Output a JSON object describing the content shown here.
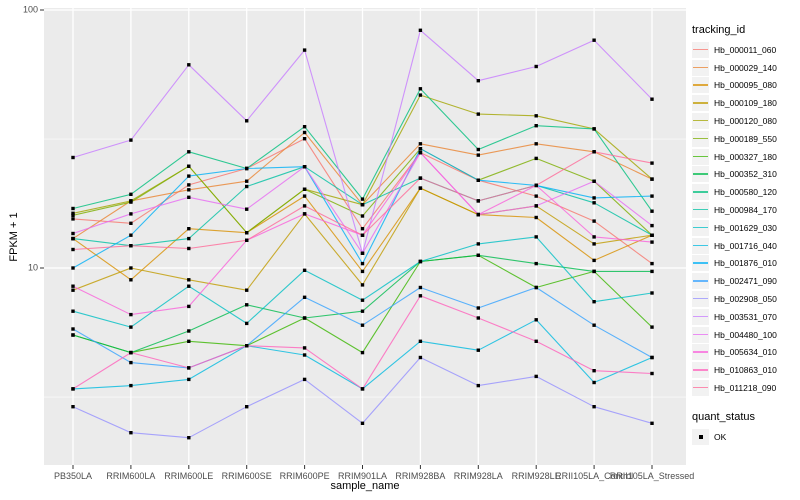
{
  "figure": {
    "background": "#FFFFFF",
    "panel_background": "#EBEBEB",
    "gridline_color": "#FFFFFF",
    "tick_text_color": "#4D4D4D",
    "marker_color": "#000000"
  },
  "chart_data": {
    "type": "line",
    "title": "",
    "xlabel": "sample_name",
    "ylabel": "FPKM + 1",
    "y_scale": "log10",
    "y_ticks": [
      100,
      10
    ],
    "y_minor_ticks": [
      31.6,
      3.16
    ],
    "ylim": [
      1.7,
      110
    ],
    "grid": true,
    "legend_position": "right",
    "legend_title": "tracking_id",
    "point_marker": "square",
    "point_color": "#000000",
    "categories": [
      "PB350LA",
      "RRIM600LA",
      "RRIM600LE",
      "RRIM600SE",
      "RRIM600PE",
      "RRIM901LA",
      "RRIM928BA",
      "RRIM928LA",
      "RRIM928LE",
      "RRII105LA_Control",
      "RRII105LA_Stressed"
    ],
    "series": [
      {
        "name": "Hb_000011_060",
        "color": "#F8766D",
        "values": [
          15.5,
          14.9,
          21.0,
          24.3,
          31.7,
          14.2,
          28.0,
          21.9,
          19.0,
          15.2,
          10.4
        ]
      },
      {
        "name": "Hb_000029_140",
        "color": "#EA8331",
        "values": [
          13.0,
          18.2,
          20.1,
          21.7,
          33.5,
          17.6,
          30.3,
          27.4,
          30.3,
          28.2,
          22.1
        ]
      },
      {
        "name": "Hb_000095_080",
        "color": "#D89000",
        "values": [
          13.0,
          9.0,
          14.2,
          13.7,
          19.0,
          9.7,
          20.4,
          16.1,
          15.7,
          10.7,
          13.4
        ]
      },
      {
        "name": "Hb_000109_180",
        "color": "#C09B00",
        "values": [
          8.2,
          10.0,
          9.0,
          8.2,
          16.2,
          8.6,
          20.4,
          16.1,
          17.4,
          12.4,
          13.4
        ]
      },
      {
        "name": "Hb_000120_080",
        "color": "#A3A500",
        "values": [
          16.3,
          18.2,
          24.8,
          13.7,
          20.2,
          17.6,
          46.8,
          39.5,
          38.9,
          34.6,
          22.1
        ]
      },
      {
        "name": "Hb_000189_550",
        "color": "#7CAE00",
        "values": [
          16.0,
          18.0,
          24.8,
          13.7,
          20.2,
          15.9,
          29.0,
          21.9,
          26.6,
          21.7,
          13.4
        ]
      },
      {
        "name": "Hb_000327_180",
        "color": "#39B600",
        "values": [
          5.5,
          4.7,
          5.2,
          5.0,
          6.4,
          4.7,
          10.6,
          11.2,
          8.4,
          9.7,
          5.9
        ]
      },
      {
        "name": "Hb_000352_310",
        "color": "#00BB4E",
        "values": [
          5.5,
          4.7,
          5.7,
          7.2,
          6.4,
          6.8,
          10.6,
          11.2,
          10.4,
          9.7,
          9.7
        ]
      },
      {
        "name": "Hb_000580_120",
        "color": "#00BF7D",
        "values": [
          17.0,
          19.3,
          28.2,
          24.3,
          35.3,
          18.5,
          49.5,
          28.8,
          35.6,
          34.6,
          16.6
        ]
      },
      {
        "name": "Hb_000984_170",
        "color": "#00C1A3",
        "values": [
          13.0,
          12.2,
          13.0,
          20.7,
          24.7,
          17.6,
          22.3,
          18.2,
          20.9,
          17.9,
          13.4
        ]
      },
      {
        "name": "Hb_001629_030",
        "color": "#00BFC4",
        "values": [
          6.8,
          5.9,
          8.5,
          6.1,
          9.8,
          7.5,
          10.6,
          12.4,
          13.2,
          7.4,
          8.0
        ]
      },
      {
        "name": "Hb_001716_040",
        "color": "#00BAE0",
        "values": [
          3.4,
          3.5,
          3.7,
          5.0,
          4.6,
          3.4,
          5.2,
          4.8,
          6.3,
          3.6,
          4.5
        ]
      },
      {
        "name": "Hb_001876_010",
        "color": "#00B0F6",
        "values": [
          10.0,
          13.4,
          22.7,
          24.3,
          24.7,
          10.4,
          29.0,
          21.9,
          20.9,
          18.7,
          19.0
        ]
      },
      {
        "name": "Hb_002471_090",
        "color": "#35A2FF",
        "values": [
          5.8,
          4.3,
          4.1,
          5.0,
          7.7,
          6.0,
          8.4,
          7.0,
          8.4,
          6.0,
          4.5
        ]
      },
      {
        "name": "Hb_002908_050",
        "color": "#9590FF",
        "values": [
          2.9,
          2.3,
          2.2,
          2.9,
          3.7,
          2.5,
          4.5,
          3.5,
          3.8,
          2.9,
          2.5
        ]
      },
      {
        "name": "Hb_003531_070",
        "color": "#C77CFF",
        "values": [
          26.8,
          31.3,
          61.3,
          37.2,
          69.9,
          11.4,
          83.4,
          53.2,
          60.4,
          76.4,
          45.1
        ]
      },
      {
        "name": "Hb_004480_100",
        "color": "#E76BF3",
        "values": [
          13.6,
          16.2,
          18.8,
          16.9,
          24.7,
          11.4,
          28.0,
          16.1,
          17.4,
          21.7,
          14.6
        ]
      },
      {
        "name": "Hb_005634_010",
        "color": "#FA62DB",
        "values": [
          8.5,
          6.6,
          7.1,
          12.8,
          16.2,
          13.4,
          28.0,
          16.1,
          20.9,
          13.2,
          12.6
        ]
      },
      {
        "name": "Hb_010863_010",
        "color": "#FF62BC",
        "values": [
          3.4,
          4.7,
          4.1,
          5.0,
          4.9,
          3.4,
          7.8,
          6.4,
          5.2,
          4.0,
          3.9
        ]
      },
      {
        "name": "Hb_011218_090",
        "color": "#FF6A98",
        "values": [
          11.8,
          12.2,
          11.9,
          12.8,
          17.4,
          13.4,
          22.3,
          18.2,
          20.9,
          28.2,
          25.5
        ]
      }
    ],
    "secondary_legend": {
      "title": "quant_status",
      "items": [
        {
          "label": "OK",
          "marker": "black-square",
          "color": "#000000"
        }
      ]
    }
  }
}
